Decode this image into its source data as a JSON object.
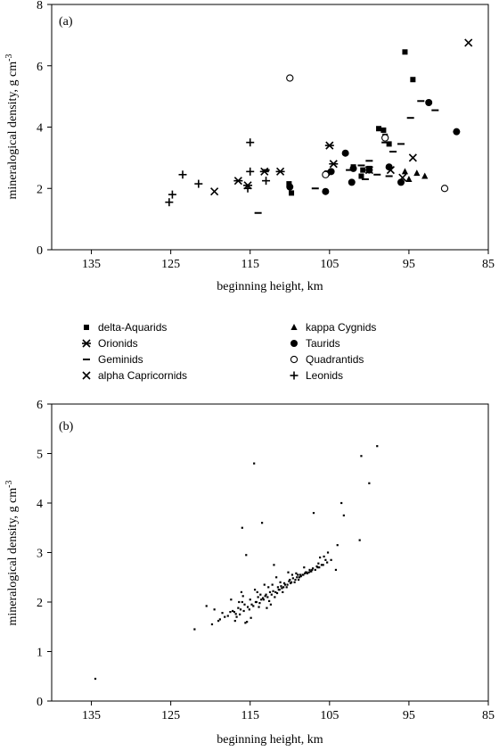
{
  "chart_data": [
    {
      "type": "scatter",
      "panel_label": "(a)",
      "xlabel": "beginning height, km",
      "ylabel": "mineralogical density, g cm-3",
      "xlim": [
        140,
        85
      ],
      "ylim": [
        0,
        8
      ],
      "xticks": [
        135,
        125,
        115,
        105,
        95,
        85
      ],
      "yticks": [
        0,
        2,
        4,
        6,
        8
      ],
      "legend": "below",
      "series": [
        {
          "name": "delta-Aquarids",
          "marker": "square",
          "x": [
            95.5,
            94.5,
            98.8,
            98.2,
            98.0,
            97.5,
            102,
            100.8,
            101.0,
            105.3,
            110.1,
            109.8,
            100.0
          ],
          "y": [
            6.45,
            5.55,
            3.95,
            3.9,
            3.7,
            3.45,
            2.7,
            2.6,
            2.4,
            2.5,
            2.15,
            1.85,
            2.65
          ]
        },
        {
          "name": "Orionids",
          "marker": "asterisk",
          "x": [
            115.3,
            113.2,
            111.2,
            116.5,
            105.0,
            104.5
          ],
          "y": [
            2.1,
            2.55,
            2.55,
            2.25,
            3.4,
            2.8
          ]
        },
        {
          "name": "Geminids",
          "marker": "dash",
          "x": [
            93.5,
            91.7,
            94.8,
            96.0,
            97.0,
            98.0,
            100.0,
            101.0,
            102.5,
            99.0,
            100.5,
            97.5,
            106.8,
            114.0,
            113.0
          ],
          "y": [
            4.85,
            4.55,
            4.3,
            3.45,
            3.2,
            3.5,
            2.9,
            2.75,
            2.6,
            2.45,
            2.3,
            2.4,
            2.0,
            1.2,
            2.6
          ]
        },
        {
          "name": "alpha Capricornids",
          "marker": "x",
          "x": [
            87.5,
            94.5,
            97.3,
            100.0,
            95.8,
            119.5
          ],
          "y": [
            6.75,
            3.0,
            2.6,
            2.6,
            2.35,
            1.9
          ]
        },
        {
          "name": "kappa Cygnids",
          "marker": "triangle",
          "x": [
            95.5,
            95.0,
            93.0,
            94.0
          ],
          "y": [
            2.55,
            2.3,
            2.4,
            2.5
          ]
        },
        {
          "name": "Taurids",
          "marker": "circle",
          "x": [
            92.5,
            89.0,
            103.0,
            102.0,
            100.0,
            97.5,
            104.8,
            102.2,
            96.0,
            110.0,
            105.5
          ],
          "y": [
            4.8,
            3.85,
            3.15,
            2.65,
            2.6,
            2.7,
            2.55,
            2.2,
            2.2,
            2.05,
            1.9
          ]
        },
        {
          "name": "Quadrantids",
          "marker": "open-circle",
          "x": [
            110.0,
            98.0,
            90.5,
            105.5
          ],
          "y": [
            5.6,
            3.65,
            2.0,
            2.45
          ]
        },
        {
          "name": "Leonids",
          "marker": "plus",
          "x": [
            125.2,
            124.8,
            123.5,
            121.5,
            115.3,
            115.0,
            115.0,
            113.0
          ],
          "y": [
            1.55,
            1.8,
            2.45,
            2.15,
            2.0,
            2.55,
            3.5,
            2.25
          ]
        }
      ]
    },
    {
      "type": "scatter",
      "panel_label": "(b)",
      "xlabel": "beginning height, km",
      "ylabel": "mineralogical density, g cm-3",
      "xlim": [
        140,
        85
      ],
      "ylim": [
        0,
        6
      ],
      "xticks": [
        135,
        125,
        115,
        105,
        95,
        85
      ],
      "yticks": [
        0,
        1,
        2,
        3,
        4,
        5,
        6
      ],
      "series": [
        {
          "marker": "dot",
          "x": [
            134.5,
            122,
            116,
            115.5,
            112,
            113.5,
            114.5,
            107,
            104,
            101,
            100,
            99,
            103.5,
            103.2,
            101.2,
            119.5,
            119,
            118.5,
            117.8,
            117,
            116.8,
            116.2,
            115.8,
            115.3,
            114.8,
            114.3,
            113.8,
            113.3,
            112.8,
            112.3,
            111.8,
            111.3,
            110.8,
            110.3,
            109.8,
            109.3,
            108.8,
            108.3,
            107.8,
            107.3,
            106.8,
            106.3,
            105.8,
            105.3,
            104.8,
            118.2,
            117.5,
            116.5,
            116,
            115,
            114,
            113,
            112.5,
            111.5,
            111,
            110,
            109,
            108,
            107.5,
            106.5,
            106,
            105.5,
            116.3,
            115.7,
            115.1,
            114.6,
            113.6,
            113.1,
            112.6,
            112.1,
            111.6,
            111.1,
            110.6,
            110.1,
            109.6,
            109.1,
            108.6,
            108.1,
            107.6,
            107.1,
            106.6,
            117.2,
            116.7,
            118.8,
            119.8,
            120.5,
            115.9,
            114.2,
            113.4,
            112.4,
            111.4,
            110.4,
            109.4,
            108.4,
            107.4,
            106.4,
            115.6,
            114.9,
            113.9,
            112.9,
            111.9,
            110.9,
            109.9,
            108.9,
            107.9,
            117.4,
            116.4,
            114.4,
            112.7,
            111.2,
            109.2,
            108.2,
            106.2,
            105.2,
            113.7,
            110.2,
            116.9,
            115.4,
            114.1,
            112.2,
            110.7,
            108.7,
            107.2,
            105.7,
            104.2,
            111.7,
            109.7,
            113.2,
            116.1
          ],
          "y": [
            0.45,
            1.45,
            3.5,
            2.95,
            2.75,
            3.6,
            4.8,
            3.8,
            3.15,
            4.95,
            4.4,
            5.15,
            4.0,
            3.75,
            3.25,
            1.85,
            1.62,
            1.78,
            1.72,
            1.8,
            1.76,
            1.85,
            1.82,
            1.9,
            1.95,
            2.0,
            1.98,
            2.05,
            2.1,
            2.15,
            2.2,
            2.25,
            2.3,
            2.35,
            2.4,
            2.45,
            2.5,
            2.55,
            2.58,
            2.62,
            2.65,
            2.7,
            2.75,
            2.8,
            2.85,
            1.7,
            1.8,
            1.88,
            2.0,
            2.05,
            2.1,
            2.15,
            2.2,
            2.3,
            2.28,
            2.45,
            2.55,
            2.6,
            2.65,
            2.7,
            2.75,
            2.85,
            1.75,
            1.95,
            1.85,
            1.92,
            2.05,
            2.12,
            2.02,
            2.22,
            2.18,
            2.32,
            2.35,
            2.42,
            2.48,
            2.5,
            2.52,
            2.58,
            2.6,
            2.68,
            2.72,
            1.82,
            1.7,
            1.65,
            1.55,
            1.92,
            2.12,
            2.0,
            2.08,
            1.95,
            2.25,
            2.3,
            2.4,
            2.55,
            2.62,
            2.78,
            1.58,
            1.68,
            1.9,
            1.88,
            2.1,
            2.2,
            2.38,
            2.45,
            2.6,
            2.05,
            2.0,
            2.25,
            2.3,
            2.4,
            2.58,
            2.7,
            2.9,
            3.0,
            2.15,
            2.6,
            1.62,
            1.6,
            2.2,
            2.35,
            2.38,
            2.55,
            2.65,
            2.92,
            2.65,
            2.5,
            2.55,
            2.35,
            2.2
          ]
        }
      ]
    }
  ],
  "legend": {
    "items": [
      {
        "label": "delta-Aquarids",
        "marker": "square"
      },
      {
        "label": "Orionids",
        "marker": "asterisk"
      },
      {
        "label": "Geminids",
        "marker": "dash"
      },
      {
        "label": "alpha Capricornids",
        "marker": "x"
      },
      {
        "label": "kappa Cygnids",
        "marker": "triangle"
      },
      {
        "label": "Taurids",
        "marker": "circle"
      },
      {
        "label": "Quadrantids",
        "marker": "open-circle"
      },
      {
        "label": "Leonids",
        "marker": "plus"
      }
    ]
  },
  "yunit_superscript": "-3",
  "ylabel_base": "mineralogical density, g cm"
}
